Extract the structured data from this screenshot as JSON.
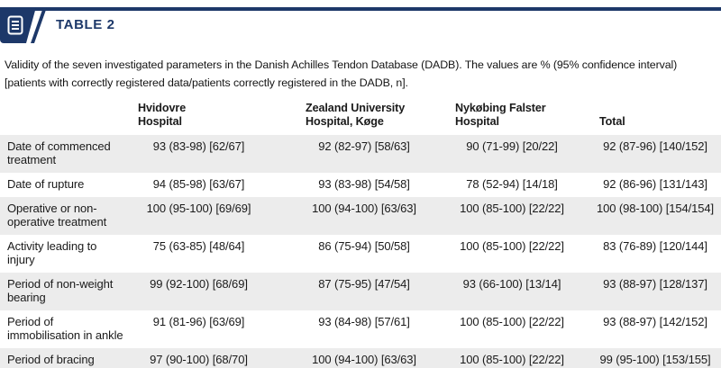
{
  "header": {
    "tag": "TABLE 2",
    "icon": "table-document-icon"
  },
  "caption": "Validity of the seven investigated parameters in the Danish Achilles Tendon Database (DADB). The values are % (95% confidence interval) [patients with correctly registered data/patients correctly registered in the DADB, n].",
  "table": {
    "columns": [
      {
        "lines": [
          "Hvidovre",
          "Hospital"
        ]
      },
      {
        "lines": [
          "Zealand University",
          "Hospital, Køge"
        ]
      },
      {
        "lines": [
          "Nykøbing Falster",
          "Hospital"
        ]
      },
      {
        "lines": [
          "Total"
        ]
      }
    ],
    "rows": [
      {
        "label": "Date of commenced treatment",
        "values": [
          "93 (83-98) [62/67]",
          "92 (82-97) [58/63]",
          "90 (71-99) [20/22]",
          "92 (87-96) [140/152]"
        ]
      },
      {
        "label": "Date of rupture",
        "values": [
          "94 (85-98) [63/67]",
          "93 (83-98) [54/58]",
          "78 (52-94) [14/18]",
          "92 (86-96) [131/143]"
        ]
      },
      {
        "label": "Operative or non-operative treatment",
        "values": [
          "100 (95-100) [69/69]",
          "100 (94-100) [63/63]",
          "100 (85-100) [22/22]",
          "100 (98-100) [154/154]"
        ]
      },
      {
        "label": "Activity leading to injury",
        "values": [
          "75 (63-85) [48/64]",
          "86 (75-94) [50/58]",
          "100 (85-100) [22/22]",
          "83 (76-89) [120/144]"
        ]
      },
      {
        "label": "Period of non-weight bearing",
        "values": [
          "99 (92-100) [68/69]",
          "87 (75-95) [47/54]",
          "93 (66-100) [13/14]",
          "93 (88-97) [128/137]"
        ]
      },
      {
        "label": "Period of immobilisation in ankle",
        "values": [
          "91 (81-96) [63/69]",
          "93 (84-98) [57/61]",
          "100 (85-100) [22/22]",
          "93 (88-97) [142/152]"
        ]
      },
      {
        "label": "Period of bracing",
        "values": [
          "97 (90-100) [68/70]",
          "100 (94-100) [63/63]",
          "100 (85-100) [22/22]",
          "99 (95-100) [153/155]"
        ]
      }
    ]
  },
  "colors": {
    "accent": "#1d3869",
    "row_stripe": "#ececec",
    "text": "#1a1a1a",
    "rule_edge": "#a9bcd9"
  }
}
